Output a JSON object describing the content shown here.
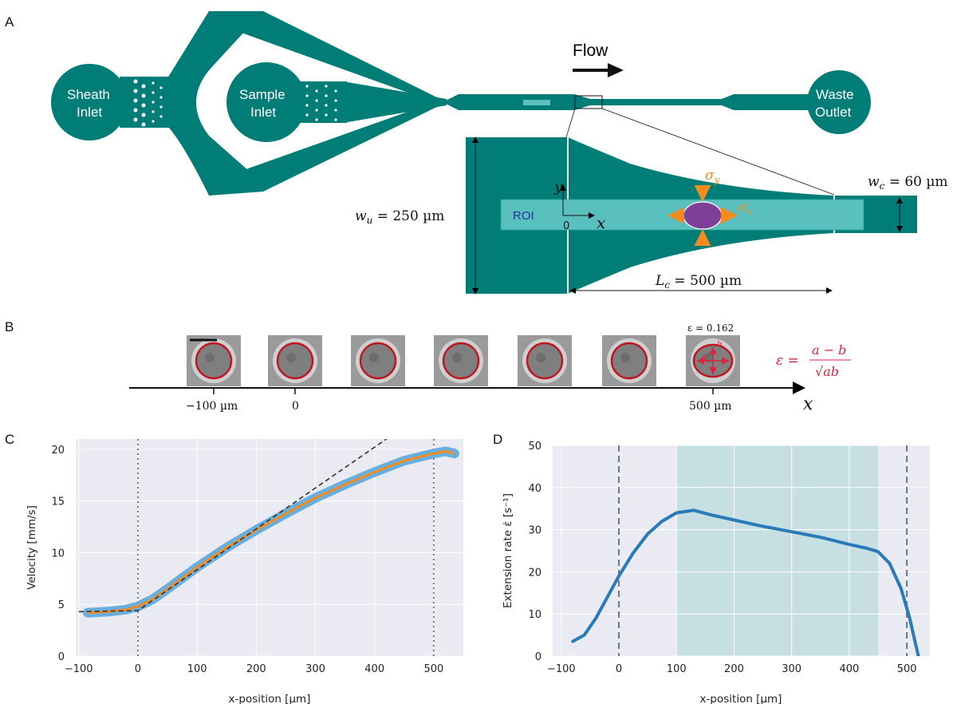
{
  "panel_letters": {
    "a": "A",
    "b": "B",
    "c": "C",
    "d": "D"
  },
  "schematic": {
    "sheath_inlet_line1": "Sheath",
    "sheath_inlet_line2": "Inlet",
    "sample_inlet_line1": "Sample",
    "sample_inlet_line2": "Inlet",
    "waste_outlet_line1": "Waste",
    "waste_outlet_line2": "Outlet",
    "flow_label": "Flow",
    "inlet_roi_label": "inlet ROI",
    "roi_label": "ROI",
    "origin_label": "0",
    "x_axis_symbol": "x",
    "y_axis_symbol": "y",
    "sigma_y": "σ",
    "sigma_y_sub": "y",
    "sigma_x": "σ",
    "sigma_x_sub": "x",
    "wu_label": "w",
    "wu_sub": "u",
    "wu_value": " = 250 µm",
    "wc_label": "w",
    "wc_sub": "c",
    "wc_value": " = 60 µm",
    "lc_label": "L",
    "lc_sub": "c",
    "lc_value": " = 500 µm",
    "colors": {
      "channel": "#017d77",
      "roi": "#59c0bd",
      "cell": "#7e3f98",
      "stress": "#f28c1e"
    }
  },
  "panel_b": {
    "epsilon_top": "ε = 0.162",
    "formula_lhs": "ε =",
    "formula_num": "a − b",
    "formula_den": "√ab",
    "tick_labels": [
      "−100 µm",
      "0",
      "500 µm"
    ],
    "axis_symbol": "x",
    "cell_label_a": "a",
    "cell_label_b": "b",
    "formula_color": "#d7263d"
  },
  "chart_data": [
    {
      "type": "line",
      "panel": "C",
      "xlabel": "x-position [µm]",
      "ylabel": "Velocity [mm/s]",
      "xlim": [
        -105,
        550
      ],
      "ylim": [
        0,
        21
      ],
      "xticks": [
        -100,
        0,
        100,
        200,
        300,
        400,
        500
      ],
      "yticks": [
        0,
        5,
        10,
        15,
        20
      ],
      "grid": true,
      "series": [
        {
          "role": "mean",
          "color": "#f28c1e",
          "x": [
            -85,
            -50,
            -20,
            0,
            25,
            50,
            100,
            150,
            200,
            250,
            300,
            350,
            400,
            450,
            500,
            520,
            535
          ],
          "y": [
            4.2,
            4.3,
            4.5,
            4.8,
            5.5,
            6.5,
            8.6,
            10.5,
            12.2,
            13.8,
            15.3,
            16.6,
            17.8,
            18.9,
            19.6,
            19.8,
            19.6
          ]
        },
        {
          "role": "fit-linear",
          "color": "#333333",
          "style": "dashed",
          "x": [
            -100,
            0,
            420
          ],
          "y": [
            4.3,
            4.4,
            21
          ]
        }
      ],
      "vlines": [
        0,
        500
      ]
    },
    {
      "type": "line",
      "panel": "D",
      "xlabel": "x-position [µm]",
      "ylabel": "Extension rate ε̇ [s⁻¹]",
      "xlim": [
        -115,
        540
      ],
      "ylim": [
        0,
        50
      ],
      "xticks": [
        -100,
        0,
        100,
        200,
        300,
        400,
        500
      ],
      "yticks": [
        0,
        10,
        20,
        30,
        40,
        50
      ],
      "grid": true,
      "shaded_region": [
        100,
        450
      ],
      "vlines": [
        0,
        500
      ],
      "series": [
        {
          "color": "#2a7ab9",
          "x": [
            -80,
            -60,
            -40,
            -20,
            0,
            25,
            50,
            75,
            100,
            130,
            160,
            200,
            250,
            300,
            350,
            400,
            430,
            450,
            470,
            490,
            505,
            515,
            520
          ],
          "y": [
            3.5,
            5,
            9,
            14,
            19,
            24.5,
            29,
            32,
            34,
            34.6,
            33.5,
            32.3,
            30.8,
            29.5,
            28.2,
            26.5,
            25.6,
            24.8,
            22,
            16,
            9,
            3,
            0
          ]
        }
      ]
    }
  ]
}
